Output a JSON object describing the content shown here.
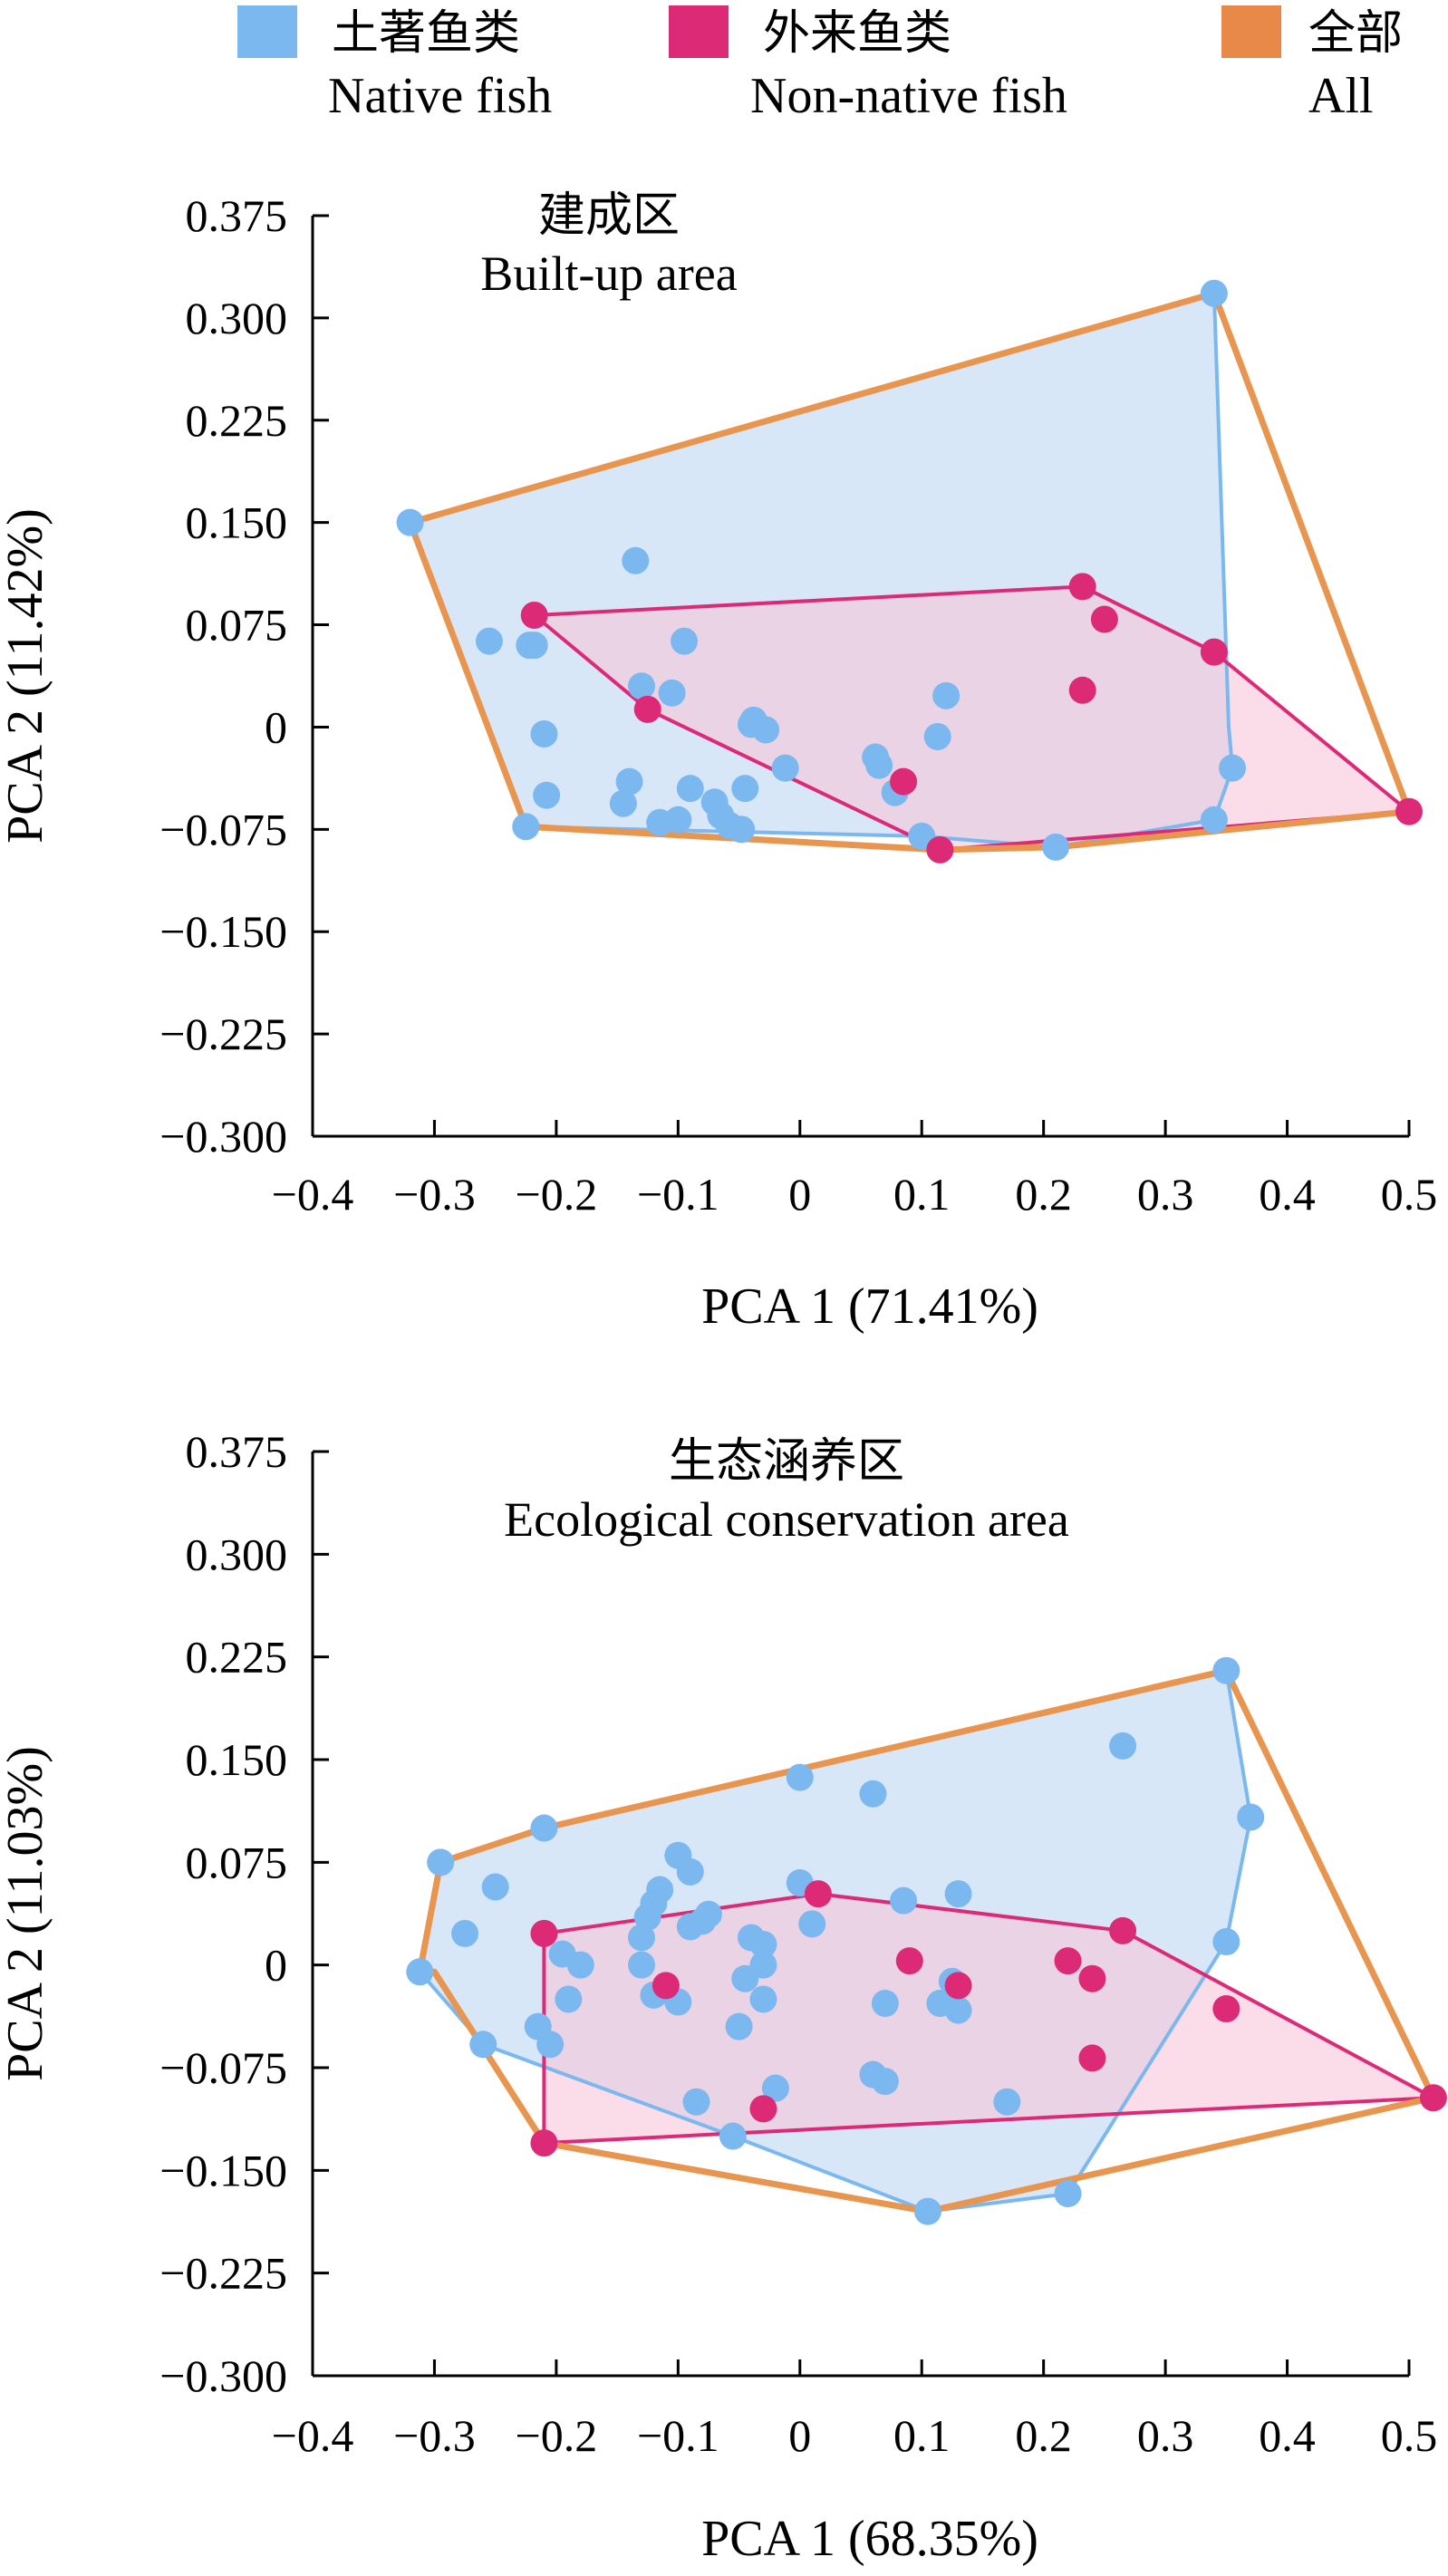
{
  "legend": {
    "items": [
      {
        "zh": "土著鱼类",
        "en": "Native fish",
        "color": "#7bb8ef"
      },
      {
        "zh": "外来鱼类",
        "en": "Non-native fish",
        "color": "#dd2a77"
      },
      {
        "zh": "全部",
        "en": "All",
        "color": "#e8894a"
      }
    ]
  },
  "colors": {
    "native_fill": "#d6e6f8",
    "nonnative_fill": "#f7c7d8",
    "native_line": "#7bb8ef",
    "nonnative_line": "#dd2a77",
    "all_line": "#e8954f"
  },
  "chart_data": [
    {
      "type": "scatter",
      "title_zh": "建成区",
      "title_en": "Built-up area",
      "xlabel": "PCA 1 (71.41%)",
      "ylabel": "PCA 2 (11.42%)",
      "xlim": [
        -0.4,
        0.5
      ],
      "ylim": [
        -0.3,
        0.375
      ],
      "xticks": [
        -0.4,
        -0.3,
        -0.2,
        -0.1,
        0,
        0.1,
        0.2,
        0.3,
        0.4,
        0.5
      ],
      "xtick_labels": [
        "−0.4",
        "−0.3",
        "−0.2",
        "−0.1",
        "0",
        "0.1",
        "0.2",
        "0.3",
        "0.4",
        "0.5"
      ],
      "yticks": [
        0.375,
        0.3,
        0.225,
        0.15,
        0.075,
        0,
        -0.075,
        -0.15,
        -0.225,
        -0.3
      ],
      "ytick_labels": [
        "0.375",
        "0.300",
        "0.225",
        "0.150",
        "0.075",
        "0",
        "−0.075",
        "−0.150",
        "−0.225",
        "−0.300"
      ],
      "series": [
        {
          "name": "Native fish",
          "points": [
            [
              -0.32,
              0.15
            ],
            [
              0.34,
              0.318
            ],
            [
              -0.255,
              0.063
            ],
            [
              -0.222,
              0.06
            ],
            [
              -0.218,
              0.06
            ],
            [
              -0.135,
              0.122
            ],
            [
              -0.095,
              0.063
            ],
            [
              -0.13,
              0.03
            ],
            [
              -0.105,
              0.025
            ],
            [
              -0.21,
              -0.005
            ],
            [
              -0.208,
              -0.05
            ],
            [
              -0.14,
              -0.04
            ],
            [
              -0.145,
              -0.056
            ],
            [
              -0.115,
              -0.07
            ],
            [
              -0.1,
              -0.068
            ],
            [
              -0.09,
              -0.045
            ],
            [
              -0.07,
              -0.055
            ],
            [
              -0.065,
              -0.065
            ],
            [
              -0.058,
              -0.072
            ],
            [
              -0.048,
              -0.075
            ],
            [
              -0.045,
              -0.045
            ],
            [
              -0.04,
              0.002
            ],
            [
              -0.038,
              0.005
            ],
            [
              -0.028,
              -0.002
            ],
            [
              -0.012,
              -0.03
            ],
            [
              0.062,
              -0.022
            ],
            [
              0.065,
              -0.028
            ],
            [
              0.078,
              -0.048
            ],
            [
              0.1,
              -0.08
            ],
            [
              0.113,
              -0.007
            ],
            [
              0.12,
              0.023
            ],
            [
              0.21,
              -0.088
            ],
            [
              0.34,
              -0.068
            ],
            [
              0.355,
              -0.03
            ],
            [
              -0.225,
              -0.073
            ]
          ]
        },
        {
          "name": "Non-native fish",
          "points": [
            [
              -0.218,
              0.082
            ],
            [
              -0.125,
              0.013
            ],
            [
              0.232,
              0.103
            ],
            [
              0.25,
              0.079
            ],
            [
              0.232,
              0.027
            ],
            [
              0.34,
              0.055
            ],
            [
              0.5,
              -0.062
            ],
            [
              0.085,
              -0.04
            ],
            [
              0.115,
              -0.09
            ]
          ]
        }
      ],
      "hulls": {
        "native": [
          [
            -0.32,
            0.15
          ],
          [
            0.34,
            0.318
          ],
          [
            0.352,
            0.0
          ],
          [
            0.355,
            -0.03
          ],
          [
            0.34,
            -0.068
          ],
          [
            0.21,
            -0.088
          ],
          [
            0.1,
            -0.08
          ],
          [
            -0.225,
            -0.073
          ]
        ],
        "nonnative": [
          [
            -0.218,
            0.082
          ],
          [
            0.232,
            0.103
          ],
          [
            0.34,
            0.055
          ],
          [
            0.5,
            -0.062
          ],
          [
            0.115,
            -0.09
          ],
          [
            -0.125,
            0.013
          ]
        ],
        "all": [
          [
            -0.32,
            0.15
          ],
          [
            0.34,
            0.318
          ],
          [
            0.5,
            -0.062
          ],
          [
            0.21,
            -0.088
          ],
          [
            0.115,
            -0.09
          ],
          [
            -0.225,
            -0.073
          ]
        ]
      }
    },
    {
      "type": "scatter",
      "title_zh": "生态涵养区",
      "title_en": "Ecological conservation area",
      "xlabel": "PCA 1 (68.35%)",
      "ylabel": "PCA 2 (11.03%)",
      "xlim": [
        -0.4,
        0.5
      ],
      "ylim": [
        -0.3,
        0.375
      ],
      "xticks": [
        -0.4,
        -0.3,
        -0.2,
        -0.1,
        0,
        0.1,
        0.2,
        0.3,
        0.4,
        0.5
      ],
      "xtick_labels": [
        "−0.4",
        "−0.3",
        "−0.2",
        "−0.1",
        "0",
        "0.1",
        "0.2",
        "0.3",
        "0.4",
        "0.5"
      ],
      "yticks": [
        0.375,
        0.3,
        0.225,
        0.15,
        0.075,
        0,
        -0.075,
        -0.15,
        -0.225,
        -0.3
      ],
      "ytick_labels": [
        "0.375",
        "0.300",
        "0.225",
        "0.150",
        "0.075",
        "0",
        "−0.075",
        "−0.150",
        "−0.225",
        "−0.300"
      ],
      "series": [
        {
          "name": "Native fish",
          "points": [
            [
              -0.312,
              -0.005
            ],
            [
              -0.295,
              0.075
            ],
            [
              -0.26,
              -0.058
            ],
            [
              -0.25,
              0.057
            ],
            [
              -0.275,
              0.023
            ],
            [
              -0.21,
              0.1
            ],
            [
              -0.215,
              -0.045
            ],
            [
              -0.205,
              -0.058
            ],
            [
              -0.195,
              0.008
            ],
            [
              -0.19,
              -0.025
            ],
            [
              -0.18,
              0.0
            ],
            [
              -0.13,
              0.02
            ],
            [
              -0.125,
              0.035
            ],
            [
              -0.12,
              0.045
            ],
            [
              -0.115,
              0.055
            ],
            [
              -0.13,
              0.0
            ],
            [
              -0.1,
              0.08
            ],
            [
              -0.09,
              0.068
            ],
            [
              -0.09,
              0.028
            ],
            [
              -0.08,
              0.032
            ],
            [
              -0.075,
              0.037
            ],
            [
              -0.12,
              -0.022
            ],
            [
              -0.1,
              -0.027
            ],
            [
              -0.085,
              -0.1
            ],
            [
              -0.05,
              -0.045
            ],
            [
              -0.045,
              -0.01
            ],
            [
              -0.04,
              0.02
            ],
            [
              -0.03,
              0.015
            ],
            [
              -0.03,
              0.0
            ],
            [
              -0.03,
              -0.025
            ],
            [
              -0.055,
              -0.125
            ],
            [
              -0.02,
              -0.09
            ],
            [
              0.0,
              0.137
            ],
            [
              0.0,
              0.06
            ],
            [
              0.01,
              0.03
            ],
            [
              0.06,
              0.125
            ],
            [
              0.06,
              -0.08
            ],
            [
              0.07,
              -0.085
            ],
            [
              0.07,
              -0.028
            ],
            [
              0.085,
              0.047
            ],
            [
              0.115,
              -0.028
            ],
            [
              0.125,
              -0.012
            ],
            [
              0.13,
              -0.033
            ],
            [
              0.13,
              0.052
            ],
            [
              0.17,
              -0.1
            ],
            [
              0.105,
              -0.18
            ],
            [
              0.22,
              -0.167
            ],
            [
              0.265,
              0.16
            ],
            [
              0.35,
              0.215
            ],
            [
              0.37,
              0.108
            ],
            [
              0.35,
              0.017
            ]
          ]
        },
        {
          "name": "Non-native fish",
          "points": [
            [
              -0.21,
              0.023
            ],
            [
              -0.21,
              -0.13
            ],
            [
              -0.11,
              -0.015
            ],
            [
              -0.03,
              -0.105
            ],
            [
              0.015,
              0.052
            ],
            [
              0.09,
              0.003
            ],
            [
              0.13,
              -0.015
            ],
            [
              0.22,
              0.003
            ],
            [
              0.24,
              -0.01
            ],
            [
              0.24,
              -0.068
            ],
            [
              0.265,
              0.025
            ],
            [
              0.35,
              -0.032
            ],
            [
              0.52,
              -0.097
            ]
          ]
        }
      ],
      "hulls": {
        "native": [
          [
            -0.312,
            -0.005
          ],
          [
            -0.295,
            0.075
          ],
          [
            -0.21,
            0.1
          ],
          [
            0.35,
            0.215
          ],
          [
            0.37,
            0.108
          ],
          [
            0.35,
            0.017
          ],
          [
            0.22,
            -0.167
          ],
          [
            0.105,
            -0.18
          ],
          [
            -0.055,
            -0.125
          ],
          [
            -0.26,
            -0.058
          ]
        ],
        "nonnative": [
          [
            -0.21,
            0.023
          ],
          [
            0.015,
            0.052
          ],
          [
            0.265,
            0.025
          ],
          [
            0.52,
            -0.097
          ],
          [
            -0.21,
            -0.13
          ]
        ],
        "all": [
          [
            -0.312,
            -0.005
          ],
          [
            -0.295,
            0.075
          ],
          [
            -0.21,
            0.1
          ],
          [
            0.35,
            0.215
          ],
          [
            0.52,
            -0.097
          ],
          [
            0.105,
            -0.18
          ],
          [
            -0.21,
            -0.13
          ],
          [
            -0.3,
            -0.005
          ]
        ]
      }
    }
  ]
}
